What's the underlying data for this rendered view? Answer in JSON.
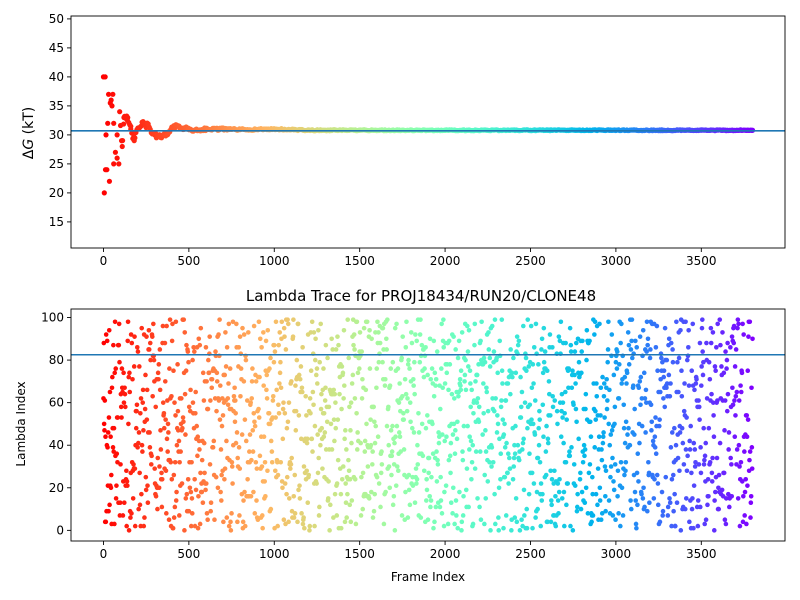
{
  "chart_data": [
    {
      "type": "scatter",
      "title": "",
      "xlabel": "",
      "ylabel": "ΔG (kT)",
      "xlim": [
        -190,
        3990
      ],
      "ylim": [
        10.5,
        50.5
      ],
      "xticks": [
        0,
        500,
        1000,
        1500,
        2000,
        2500,
        3000,
        3500
      ],
      "yticks": [
        15,
        20,
        25,
        30,
        35,
        40,
        45,
        50
      ],
      "colormap": "rainbow (red at first frame → violet at last frame)",
      "frames": [
        0,
        3800
      ],
      "reference_line": {
        "y": 30.7,
        "color": "#1f77b4"
      },
      "series": [
        {
          "description_points": "running free-energy estimate per frame; converges from scattered values to ~30.7 kT",
          "points": [
            [
              0,
              40
            ],
            [
              10,
              40
            ],
            [
              5,
              20
            ],
            [
              12,
              24
            ],
            [
              20,
              24
            ],
            [
              15,
              30
            ],
            [
              25,
              32
            ],
            [
              30,
              37
            ],
            [
              40,
              35.5
            ],
            [
              45,
              36
            ],
            [
              50,
              35
            ],
            [
              55,
              37
            ],
            [
              35,
              22
            ],
            [
              60,
              25
            ],
            [
              70,
              27
            ],
            [
              80,
              26
            ],
            [
              90,
              25
            ],
            [
              60,
              32
            ],
            [
              80,
              30
            ],
            [
              95,
              34
            ],
            [
              110,
              28
            ],
            [
              120,
              33
            ],
            [
              140,
              32.5
            ],
            [
              160,
              31
            ],
            [
              180,
              29
            ],
            [
              200,
              31
            ],
            [
              230,
              32
            ],
            [
              260,
              31.5
            ],
            [
              300,
              30
            ],
            [
              340,
              29.5
            ],
            [
              380,
              30.5
            ],
            [
              420,
              31.5
            ],
            [
              470,
              31.2
            ],
            [
              520,
              30.8
            ],
            [
              600,
              31
            ],
            [
              700,
              31
            ],
            [
              800,
              30.9
            ],
            [
              1000,
              31
            ],
            [
              1200,
              30.8
            ],
            [
              1500,
              30.8
            ],
            [
              2000,
              30.8
            ],
            [
              2500,
              30.8
            ],
            [
              3000,
              30.8
            ],
            [
              3500,
              30.8
            ],
            [
              3800,
              30.8
            ]
          ]
        }
      ]
    },
    {
      "type": "scatter",
      "title": "Lambda Trace for PROJ18434/RUN20/CLONE48",
      "xlabel": "Frame Index",
      "ylabel": "Lambda Index",
      "xlim": [
        -190,
        3990
      ],
      "ylim": [
        -5,
        104
      ],
      "xticks": [
        0,
        500,
        1000,
        1500,
        2000,
        2500,
        3000,
        3500
      ],
      "yticks": [
        0,
        20,
        40,
        60,
        80,
        100
      ],
      "colormap": "rainbow (red at first frame → violet at last frame)",
      "frames": [
        0,
        3800
      ],
      "value_range": [
        0,
        99
      ],
      "reference_line": {
        "y": 82.5,
        "color": "#1f77b4"
      },
      "series": [
        {
          "description_points": "one lambda index (0–99) per frame, frames 0–3800, uniformly scattered"
        }
      ]
    }
  ]
}
